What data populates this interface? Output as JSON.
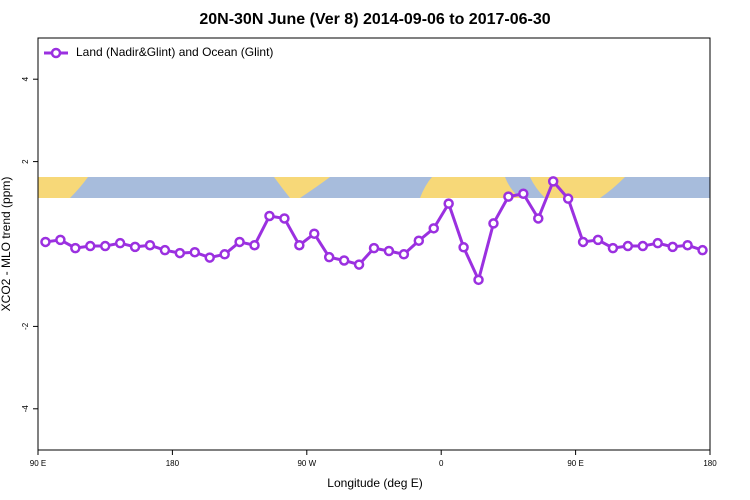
{
  "chart_data": {
    "type": "line",
    "title": "20N-30N June (Ver 8)   2014-09-06 to 2017-06-30",
    "x_label": "Longitude (deg E)",
    "y_label": "XCO2 - MLO trend (ppm)",
    "x": [
      95,
      105,
      115,
      125,
      135,
      145,
      155,
      165,
      175,
      185,
      195,
      205,
      215,
      225,
      235,
      245,
      255,
      265,
      275,
      285,
      295,
      305,
      315,
      325,
      335,
      345,
      355,
      365,
      375,
      385,
      395,
      405,
      415,
      425,
      435,
      445,
      455,
      465,
      475,
      485,
      495,
      505,
      515,
      525,
      535
    ],
    "series": [
      {
        "name": "Land (Nadir&Glint) and Ocean (Glint)",
        "color": "#9b30e0",
        "values": [
          0.05,
          0.1,
          -0.1,
          -0.05,
          -0.05,
          0.02,
          -0.07,
          -0.03,
          -0.15,
          -0.22,
          -0.2,
          -0.33,
          -0.25,
          0.05,
          -0.03,
          0.68,
          0.62,
          -0.03,
          0.25,
          -0.32,
          -0.4,
          -0.5,
          -0.1,
          -0.17,
          -0.25,
          0.08,
          0.38,
          0.98,
          -0.08,
          -0.87,
          0.5,
          1.15,
          1.22,
          0.62,
          1.52,
          1.1,
          0.05,
          0.1,
          -0.1,
          -0.05,
          -0.05,
          0.02,
          -0.07,
          -0.03,
          -0.15
        ]
      }
    ],
    "xlim": [
      90,
      540
    ],
    "xticks": [
      {
        "value": 90,
        "label": "90 E"
      },
      180,
      {
        "value": 270,
        "label": "90 W"
      },
      {
        "value": 360,
        "label": "0"
      },
      {
        "value": 450,
        "label": "90 E"
      },
      {
        "value": 540,
        "label": "180"
      }
    ],
    "ylim": [
      -5,
      5
    ],
    "yticks": [
      -4,
      -2,
      2,
      4
    ],
    "legend": "top-left",
    "grid": false
  }
}
